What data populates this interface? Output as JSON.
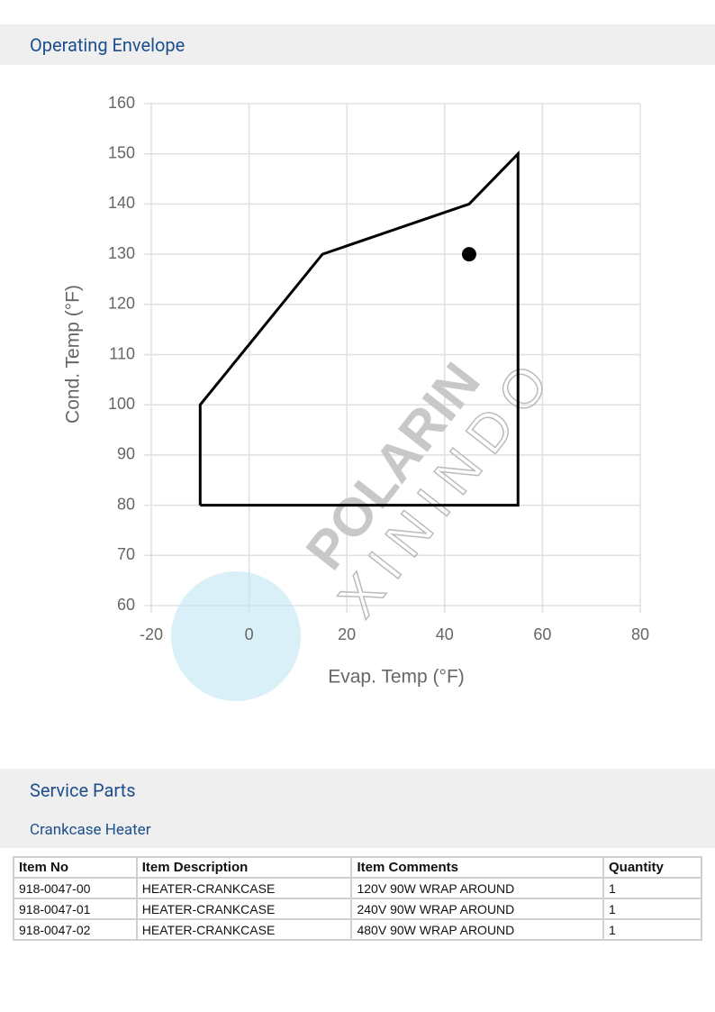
{
  "header": {
    "title": "Operating Envelope"
  },
  "chart_data": {
    "type": "line",
    "xlabel": "Evap. Temp (°F)",
    "ylabel": "Cond. Temp (°F)",
    "xlim": [
      -20,
      80
    ],
    "xticks": [
      -20,
      0,
      20,
      40,
      60,
      80
    ],
    "ylim": [
      60,
      160
    ],
    "yticks": [
      60,
      70,
      80,
      90,
      100,
      110,
      120,
      130,
      140,
      150,
      160
    ],
    "grid": true,
    "series": [
      {
        "mode": "line",
        "color": "#000000",
        "x": [
          -10,
          -10,
          15,
          45,
          55,
          55,
          -10
        ],
        "values": [
          80,
          100,
          130,
          140,
          150,
          80,
          80
        ]
      },
      {
        "mode": "markers",
        "color": "#000000",
        "x": [
          45
        ],
        "values": [
          130
        ]
      }
    ]
  },
  "watermark": {
    "brand": "POLARIN",
    "sub": "XININDO"
  },
  "service": {
    "title": "Service Parts",
    "subtitle": "Crankcase Heater"
  },
  "table": {
    "header": [
      "Item No",
      "Item Description",
      "Item Comments",
      "Quantity"
    ],
    "rows": [
      [
        "918-0047-00",
        "HEATER-CRANKCASE",
        "120V  90W  WRAP AROUND",
        "1"
      ],
      [
        "918-0047-01",
        "HEATER-CRANKCASE",
        "240V  90W  WRAP AROUND",
        "1"
      ],
      [
        "918-0047-02",
        "HEATER-CRANKCASE",
        "480V  90W  WRAP AROUND",
        "1"
      ]
    ]
  }
}
